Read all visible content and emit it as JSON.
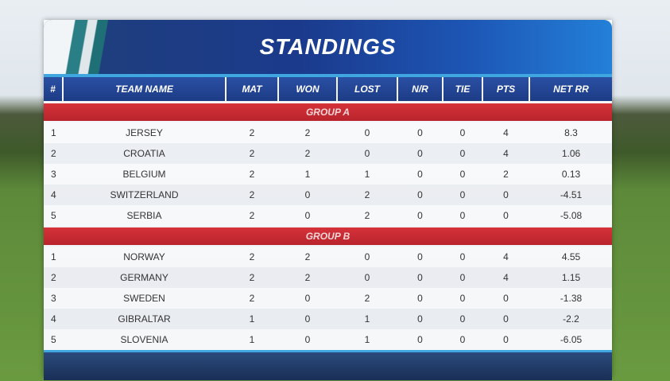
{
  "header": {
    "title": "STANDINGS"
  },
  "table": {
    "columns": [
      "#",
      "TEAM NAME",
      "MAT",
      "WON",
      "LOST",
      "N/R",
      "TIE",
      "PTS",
      "NET RR"
    ],
    "groups": [
      {
        "name": "GROUP A",
        "rows": [
          [
            "1",
            "JERSEY",
            "2",
            "2",
            "0",
            "0",
            "0",
            "4",
            "8.3"
          ],
          [
            "2",
            "CROATIA",
            "2",
            "2",
            "0",
            "0",
            "0",
            "4",
            "1.06"
          ],
          [
            "3",
            "BELGIUM",
            "2",
            "1",
            "1",
            "0",
            "0",
            "2",
            "0.13"
          ],
          [
            "4",
            "SWITZERLAND",
            "2",
            "0",
            "2",
            "0",
            "0",
            "0",
            "-4.51"
          ],
          [
            "5",
            "SERBIA",
            "2",
            "0",
            "2",
            "0",
            "0",
            "0",
            "-5.08"
          ]
        ]
      },
      {
        "name": "GROUP B",
        "rows": [
          [
            "1",
            "NORWAY",
            "2",
            "2",
            "0",
            "0",
            "0",
            "4",
            "4.55"
          ],
          [
            "2",
            "GERMANY",
            "2",
            "2",
            "0",
            "0",
            "0",
            "4",
            "1.15"
          ],
          [
            "3",
            "SWEDEN",
            "2",
            "0",
            "2",
            "0",
            "0",
            "0",
            "-1.38"
          ],
          [
            "4",
            "GIBRALTAR",
            "1",
            "0",
            "1",
            "0",
            "0",
            "0",
            "-2.2"
          ],
          [
            "5",
            "SLOVENIA",
            "1",
            "0",
            "1",
            "0",
            "0",
            "0",
            "-6.05"
          ]
        ]
      }
    ]
  }
}
